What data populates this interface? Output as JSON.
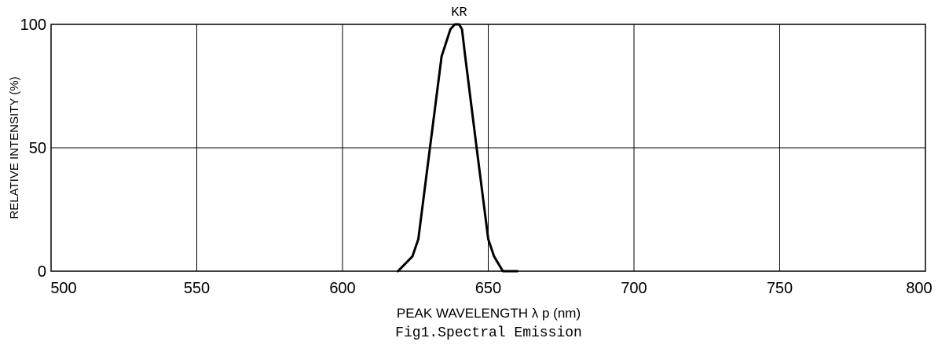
{
  "chart_data": {
    "type": "line",
    "title": "KR",
    "caption": "Fig1.Spectral Emission",
    "xlabel": "PEAK WAVELENGTH λ p (nm)",
    "ylabel": "RELATIVE INTENSITY (%)",
    "xlim": [
      500,
      800
    ],
    "ylim": [
      0,
      100
    ],
    "x_ticks": [
      500,
      550,
      600,
      650,
      700,
      750,
      800
    ],
    "y_ticks": [
      0,
      50,
      100
    ],
    "grid": true,
    "series": [
      {
        "color": "#000000",
        "x": [
          619,
          624,
          626,
          630,
          634,
          637,
          638.5,
          640,
          641,
          642,
          646,
          650,
          652,
          655,
          660
        ],
        "y": [
          0,
          6,
          13,
          50,
          87,
          98,
          100,
          100,
          98,
          88,
          50,
          13,
          6,
          0,
          0
        ]
      }
    ]
  }
}
